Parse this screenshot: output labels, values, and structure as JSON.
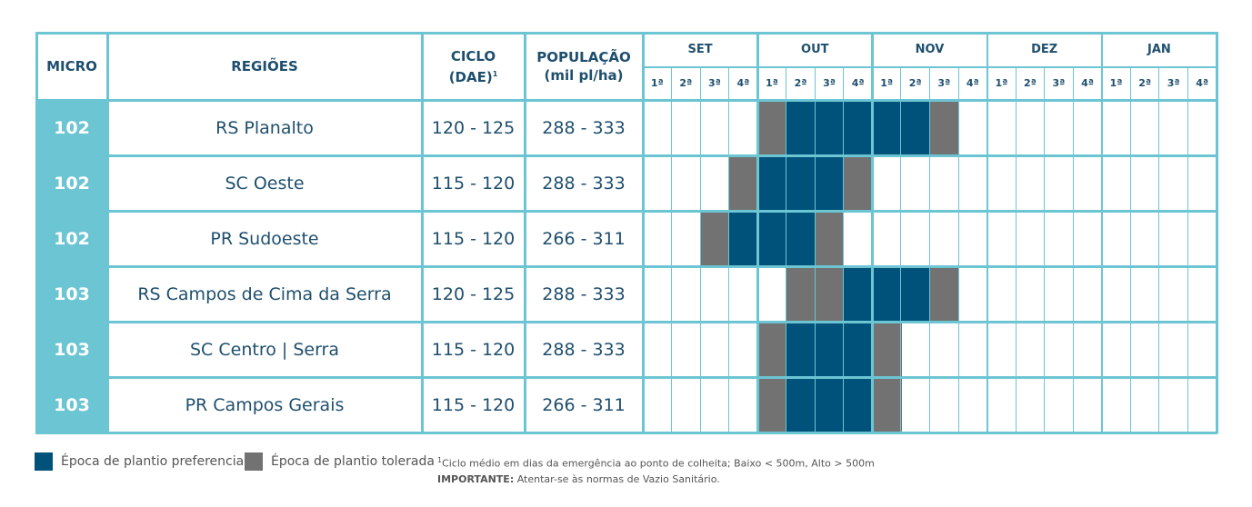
{
  "colors": {
    "border": "#6cc5d3",
    "header_text": "#1f4f6e",
    "micro_bg": "#6cc5d3",
    "preferred": "#00527a",
    "tolerated": "#727272"
  },
  "header": {
    "micro": "MICRO",
    "regions": "REGIÕES",
    "cycle_line1": "CICLO",
    "cycle_line2": "(DAE)",
    "cycle_sup": "1",
    "population_line1": "POPULAÇÃO",
    "population_line2": "(mil pl/ha)",
    "months": [
      "SET",
      "OUT",
      "NOV",
      "DEZ",
      "JAN"
    ],
    "weeks": [
      "1ª",
      "2ª",
      "3ª",
      "4ª"
    ]
  },
  "rows": [
    {
      "micro": "102",
      "region": "RS Planalto",
      "cycle": "120 - 125",
      "population": "288 -  333",
      "weeks": [
        "",
        "",
        "",
        "",
        "T",
        "P",
        "P",
        "P",
        "P",
        "P",
        "T",
        "",
        "",
        "",
        "",
        "",
        "",
        "",
        "",
        ""
      ]
    },
    {
      "micro": "102",
      "region": "SC Oeste",
      "cycle": "115 - 120",
      "population": "288 - 333",
      "weeks": [
        "",
        "",
        "",
        "T",
        "P",
        "P",
        "P",
        "T",
        "",
        "",
        "",
        "",
        "",
        "",
        "",
        "",
        "",
        "",
        "",
        ""
      ]
    },
    {
      "micro": "102",
      "region": "PR Sudoeste",
      "cycle": "115 - 120",
      "population": "266 - 311",
      "weeks": [
        "",
        "",
        "T",
        "P",
        "P",
        "P",
        "T",
        "",
        "",
        "",
        "",
        "",
        "",
        "",
        "",
        "",
        "",
        "",
        "",
        ""
      ]
    },
    {
      "micro": "103",
      "region": "RS Campos de Cima da Serra",
      "cycle": "120 - 125",
      "population": "288 - 333",
      "weeks": [
        "",
        "",
        "",
        "",
        "",
        "T",
        "T",
        "P",
        "P",
        "P",
        "T",
        "",
        "",
        "",
        "",
        "",
        "",
        "",
        "",
        ""
      ]
    },
    {
      "micro": "103",
      "region": "SC Centro | Serra",
      "cycle": "115 - 120",
      "population": "288 - 333",
      "weeks": [
        "",
        "",
        "",
        "",
        "T",
        "P",
        "P",
        "P",
        "T",
        "",
        "",
        "",
        "",
        "",
        "",
        "",
        "",
        "",
        "",
        ""
      ]
    },
    {
      "micro": "103",
      "region": "PR Campos Gerais",
      "cycle": "115 - 120",
      "population": "266 - 311",
      "weeks": [
        "",
        "",
        "",
        "",
        "T",
        "P",
        "P",
        "P",
        "T",
        "",
        "",
        "",
        "",
        "",
        "",
        "",
        "",
        "",
        "",
        ""
      ]
    }
  ],
  "legend": {
    "preferred": "Época de plantio preferencial",
    "tolerated": "Época de plantio tolerada"
  },
  "footnote": {
    "note_sup": "1",
    "note": "Ciclo médio em dias da emergência ao ponto de colheita; Baixo < 500m, Alto > 500m",
    "important_label": "IMPORTANTE:",
    "important_text": " Atentar-se às normas de Vazio Sanitário."
  }
}
